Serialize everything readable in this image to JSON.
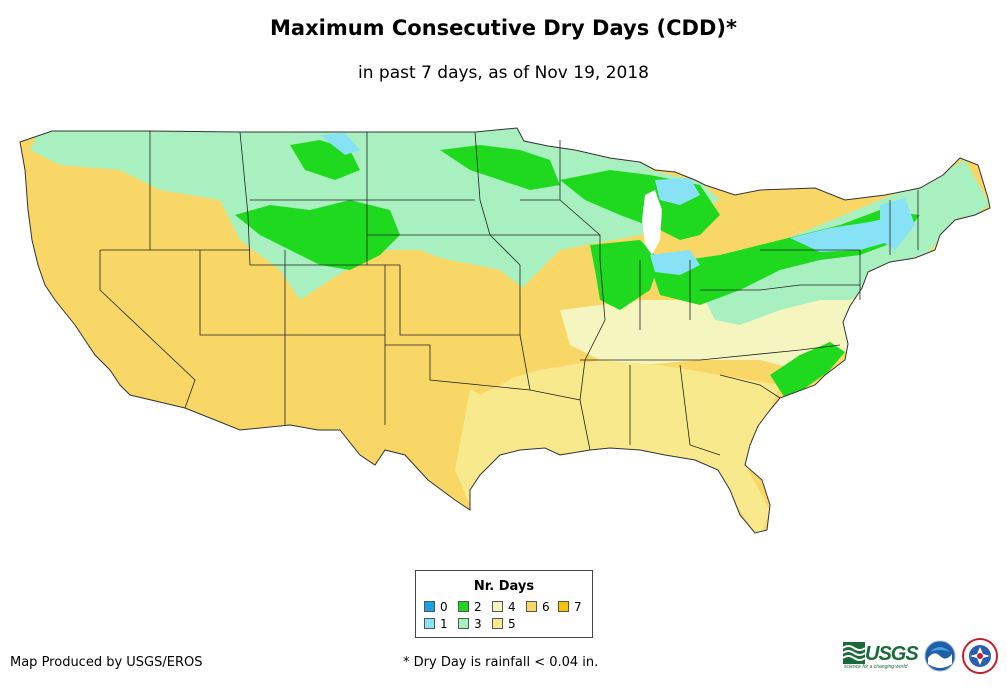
{
  "title": "Maximum Consecutive Dry Days (CDD)*",
  "subtitle": "in past 7 days, as of Nov 19, 2018",
  "legend": {
    "title": "Nr. Days",
    "items": [
      {
        "label": "0",
        "color": "#1a9fe0"
      },
      {
        "label": "1",
        "color": "#87e2f5"
      },
      {
        "label": "2",
        "color": "#1fd91f"
      },
      {
        "label": "3",
        "color": "#a8f0c0"
      },
      {
        "label": "4",
        "color": "#f5f5c0"
      },
      {
        "label": "5",
        "color": "#f8ea8c"
      },
      {
        "label": "6",
        "color": "#f8d766"
      },
      {
        "label": "7",
        "color": "#f8c100"
      }
    ]
  },
  "credit": "Map Produced by USGS/EROS",
  "footnote": "* Dry Day is rainfall < 0.04 in.",
  "logos": {
    "usgs": "USGS",
    "usgs_tagline": "science for a changing world",
    "noaa": "noaa-logo",
    "nws": "nws-logo"
  }
}
